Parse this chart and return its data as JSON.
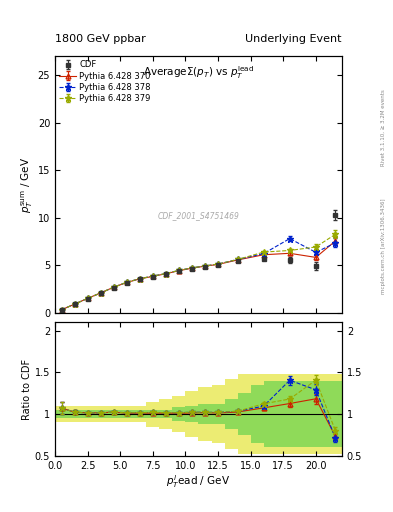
{
  "title_left": "1800 GeV ppbar",
  "title_right": "Underlying Event",
  "plot_title": "AverageΣ(p_{T}) vs p_{T}^{lead}",
  "watermark": "CDF_2001_S4751469",
  "right_label_top": "Rivet 3.1.10, ≥ 3.2M events",
  "right_label_bot": "mcplots.cern.ch [arXiv:1306.3436]",
  "cdf_x": [
    0.5,
    1.5,
    2.5,
    3.5,
    4.5,
    5.5,
    6.5,
    7.5,
    8.5,
    9.5,
    10.5,
    11.5,
    12.5,
    14.0,
    16.0,
    18.0,
    20.0,
    21.5
  ],
  "cdf_y": [
    0.28,
    0.88,
    1.48,
    2.05,
    2.62,
    3.15,
    3.52,
    3.78,
    4.05,
    4.38,
    4.62,
    4.82,
    5.02,
    5.42,
    5.68,
    5.55,
    4.92,
    10.3
  ],
  "cdf_yerr": [
    0.04,
    0.04,
    0.04,
    0.04,
    0.04,
    0.04,
    0.04,
    0.04,
    0.04,
    0.04,
    0.07,
    0.07,
    0.07,
    0.12,
    0.18,
    0.3,
    0.38,
    0.55
  ],
  "py370_x": [
    0.5,
    1.5,
    2.5,
    3.5,
    4.5,
    5.5,
    6.5,
    7.5,
    8.5,
    9.5,
    10.5,
    11.5,
    12.5,
    14.0,
    16.0,
    18.0,
    20.0,
    21.5
  ],
  "py370_y": [
    0.3,
    0.9,
    1.5,
    2.08,
    2.68,
    3.18,
    3.56,
    3.82,
    4.1,
    4.42,
    4.68,
    4.9,
    5.08,
    5.55,
    6.1,
    6.25,
    5.82,
    7.55
  ],
  "py370_yerr": [
    0.02,
    0.02,
    0.02,
    0.02,
    0.02,
    0.02,
    0.02,
    0.02,
    0.02,
    0.02,
    0.04,
    0.04,
    0.04,
    0.08,
    0.12,
    0.22,
    0.28,
    0.4
  ],
  "py378_x": [
    0.5,
    1.5,
    2.5,
    3.5,
    4.5,
    5.5,
    6.5,
    7.5,
    8.5,
    9.5,
    10.5,
    11.5,
    12.5,
    14.0,
    16.0,
    18.0,
    20.0,
    21.5
  ],
  "py378_y": [
    0.3,
    0.9,
    1.5,
    2.08,
    2.68,
    3.2,
    3.58,
    3.85,
    4.12,
    4.45,
    4.72,
    4.92,
    5.12,
    5.6,
    6.22,
    7.8,
    6.35,
    7.35
  ],
  "py378_yerr": [
    0.02,
    0.02,
    0.02,
    0.02,
    0.02,
    0.02,
    0.02,
    0.02,
    0.02,
    0.02,
    0.04,
    0.04,
    0.04,
    0.08,
    0.12,
    0.3,
    0.32,
    0.48
  ],
  "py379_x": [
    0.5,
    1.5,
    2.5,
    3.5,
    4.5,
    5.5,
    6.5,
    7.5,
    8.5,
    9.5,
    10.5,
    11.5,
    12.5,
    14.0,
    16.0,
    18.0,
    20.0,
    21.5
  ],
  "py379_y": [
    0.3,
    0.9,
    1.5,
    2.08,
    2.68,
    3.2,
    3.58,
    3.85,
    4.12,
    4.45,
    4.72,
    4.92,
    5.12,
    5.6,
    6.38,
    6.55,
    6.92,
    8.25
  ],
  "py379_yerr": [
    0.02,
    0.02,
    0.02,
    0.02,
    0.02,
    0.02,
    0.02,
    0.02,
    0.02,
    0.02,
    0.04,
    0.04,
    0.04,
    0.08,
    0.12,
    0.2,
    0.28,
    0.42
  ],
  "band_x_edges": [
    0,
    1,
    2,
    3,
    4,
    5,
    6,
    7,
    8,
    9,
    10,
    11,
    12,
    13,
    14,
    15,
    16,
    17,
    18,
    19,
    20,
    21,
    22
  ],
  "band_green_lo": [
    0.95,
    0.95,
    0.95,
    0.95,
    0.95,
    0.95,
    0.95,
    0.95,
    0.95,
    0.92,
    0.9,
    0.88,
    0.88,
    0.82,
    0.75,
    0.65,
    0.6,
    0.6,
    0.6,
    0.6,
    0.6,
    0.6
  ],
  "band_green_hi": [
    1.05,
    1.05,
    1.05,
    1.05,
    1.05,
    1.05,
    1.05,
    1.05,
    1.05,
    1.08,
    1.1,
    1.12,
    1.12,
    1.18,
    1.25,
    1.35,
    1.4,
    1.4,
    1.4,
    1.4,
    1.4,
    1.4
  ],
  "band_yellow_lo": [
    0.9,
    0.9,
    0.9,
    0.9,
    0.9,
    0.9,
    0.9,
    0.85,
    0.82,
    0.78,
    0.72,
    0.68,
    0.65,
    0.58,
    0.52,
    0.52,
    0.52,
    0.52,
    0.52,
    0.52,
    0.52,
    0.52
  ],
  "band_yellow_hi": [
    1.1,
    1.1,
    1.1,
    1.1,
    1.1,
    1.1,
    1.1,
    1.15,
    1.18,
    1.22,
    1.28,
    1.32,
    1.35,
    1.42,
    1.48,
    1.48,
    1.48,
    1.48,
    1.48,
    1.48,
    1.48,
    1.48
  ],
  "ylim_main": [
    0,
    27
  ],
  "ylim_ratio": [
    0.5,
    2.1
  ],
  "xlim": [
    0,
    22
  ],
  "yticks_main": [
    0,
    5,
    10,
    15,
    20,
    25
  ],
  "yticks_ratio": [
    0.5,
    1.0,
    1.5,
    2.0
  ],
  "color_cdf": "#333333",
  "color_370": "#cc2200",
  "color_378": "#0022cc",
  "color_379": "#99aa00",
  "color_green": "#44cc44",
  "color_yellow": "#dddd00"
}
